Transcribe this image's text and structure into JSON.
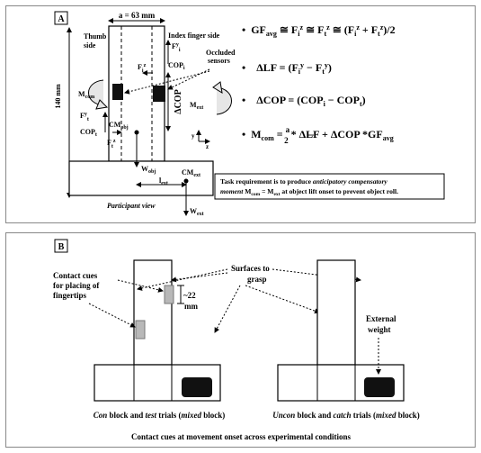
{
  "panel_a": {
    "label": "A",
    "object_width": "a = 63 mm",
    "height_label": "140 mm",
    "thumb_side": "Thumb side",
    "index_side": "Index finger side",
    "occluded_sensors": "Occluded sensors",
    "delta_cop": "ΔCOP",
    "m_com": "M",
    "m_com_sub": "com",
    "m_ext": "M",
    "m_ext_sub": "ext",
    "cop_i": "COP",
    "cop_i_sub": "i",
    "cop_t": "COP",
    "cop_t_sub": "t",
    "cm_obj": "CM",
    "cm_obj_sub": "obj",
    "w_obj": "W",
    "w_obj_sub": "obj",
    "cm_ext": "CM",
    "cm_ext_sub": "ext",
    "l_ext": "l",
    "l_ext_sub": "ext",
    "w_ext": "W",
    "w_ext_sub": "ext",
    "participant_view": "Participant view",
    "axis_y": "y",
    "axis_z": "z",
    "equations": [
      "GF_avg ≅ F_i^z ≅ F_t^z ≅ (F_i^z + F_t^z)/2",
      "ΔLF = (F_i^y − F_t^y)",
      "ΔCOP = (COP_i − COP_t)",
      "M_com = a/2 * ΔLF + ΔCOP * GF_avg"
    ],
    "task_requirement": "Task requirement is to produce anticipatory compensatory moment M_com = M_ext at object lift onset to prevent object roll."
  },
  "panel_b": {
    "label": "B",
    "contact_cues": "Contact cues for placing of fingertips",
    "surfaces_to_grasp": "Surfaces to grasp",
    "distance": "~22 mm",
    "external_weight": "External weight",
    "left_caption": "Con block and test trials (mixed block)",
    "right_caption": "Uncon block and catch trials (mixed block)",
    "title": "Contact cues at movement onset across experimental conditions"
  },
  "colors": {
    "sensor": "#111111",
    "cue": "#b8b8b8",
    "panel_border": "#888888",
    "arrow_fill": "#e6e6e6"
  }
}
